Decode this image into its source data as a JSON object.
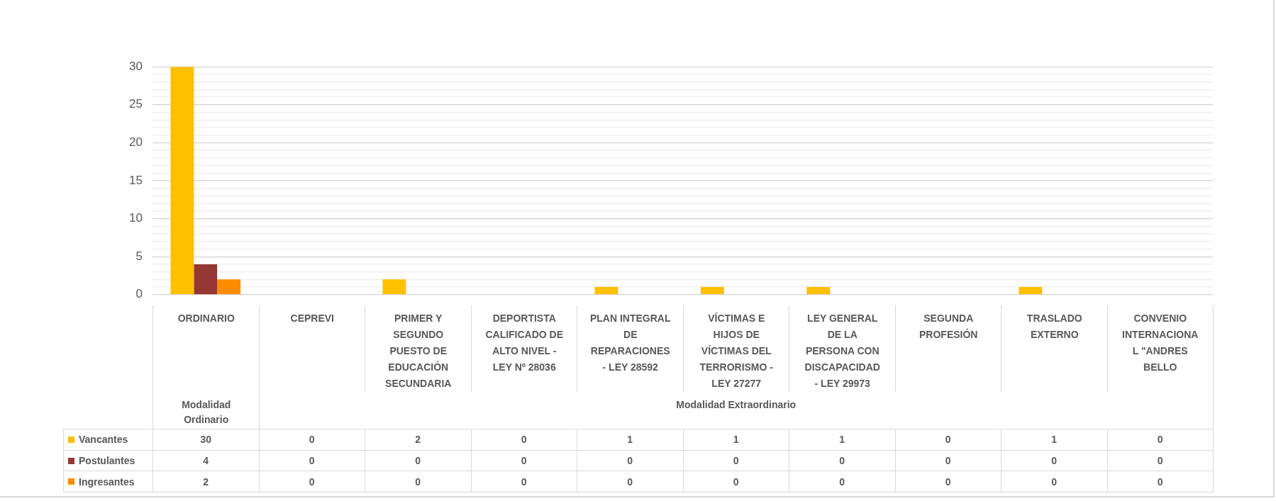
{
  "chart_data": {
    "type": "bar",
    "categories": [
      "ORDINARIO",
      "CEPREVI",
      "PRIMER Y SEGUNDO PUESTO DE EDUCACIÓN SECUNDARIA",
      "DEPORTISTA CALIFICADO DE ALTO NIVEL - LEY Nº 28036",
      "PLAN INTEGRAL DE REPARACIONES - LEY 28592",
      "VÍCTIMAS E HIJOS DE VÍCTIMAS DEL TERRORISMO - LEY 27277",
      "LEY GENERAL DE LA PERSONA CON DISCAPACIDAD - LEY 29973",
      "SEGUNDA PROFESIÓN",
      "TRASLADO EXTERNO",
      "CONVENIO INTERNACIONAL \"ANDRES BELLO"
    ],
    "series": [
      {
        "name": "Vancantes",
        "color": "#ffc000",
        "values": [
          30,
          0,
          2,
          0,
          1,
          1,
          1,
          0,
          1,
          0
        ]
      },
      {
        "name": "Postulantes",
        "color": "#953735",
        "values": [
          4,
          0,
          0,
          0,
          0,
          0,
          0,
          0,
          0,
          0
        ]
      },
      {
        "name": "Ingresantes",
        "color": "#ff8c00",
        "values": [
          2,
          0,
          0,
          0,
          0,
          0,
          0,
          0,
          0,
          0
        ]
      }
    ],
    "ylim": [
      0,
      30
    ],
    "yticks": [
      0,
      {
        "value": 1,
        "label": null
      },
      {
        "value": 2,
        "label": null
      },
      {
        "value": 3,
        "label": null
      },
      {
        "value": 4,
        "label": null
      },
      5,
      {
        "value": 6,
        "label": null
      },
      {
        "value": 7,
        "label": null
      },
      {
        "value": 8,
        "label": null
      },
      {
        "value": 9,
        "label": null
      },
      10,
      {
        "value": 11,
        "label": null
      },
      {
        "value": 12,
        "label": null
      },
      {
        "value": 13,
        "label": null
      },
      {
        "value": 14,
        "label": null
      },
      15,
      {
        "value": 16,
        "label": null
      },
      {
        "value": 17,
        "label": null
      },
      {
        "value": 18,
        "label": null
      },
      {
        "value": 19,
        "label": null
      },
      20,
      {
        "value": 21,
        "label": null
      },
      {
        "value": 22,
        "label": null
      },
      {
        "value": 23,
        "label": null
      },
      {
        "value": 24,
        "label": null
      },
      25,
      {
        "value": 26,
        "label": null
      },
      {
        "value": 27,
        "label": null
      },
      {
        "value": 28,
        "label": null
      },
      {
        "value": 29,
        "label": null
      },
      30
    ],
    "grid": "y",
    "legend": "bottom",
    "data_labels": true,
    "annotations": [
      "Modalidad Ordinario",
      "Modalidad Extraordinario"
    ]
  }
}
